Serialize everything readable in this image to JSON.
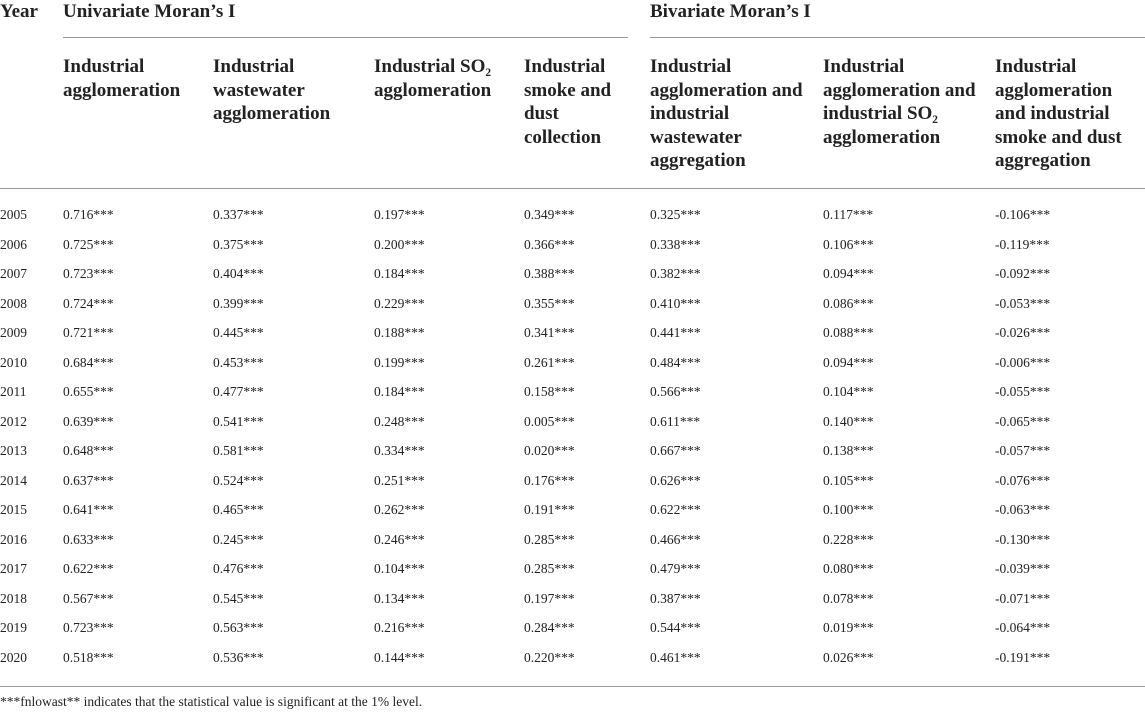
{
  "table": {
    "group_headers": [
      "Year",
      "Univariate Moran’s I",
      "Bivariate Moran’s I"
    ],
    "column_headers": [
      "Industrial agglomeration",
      "Industrial wastewater agglomeration",
      "Industrial SO₂ agglomeration",
      "Industrial smoke and dust collection",
      "Industrial agglomeration and industrial wastewater aggregation",
      "Industrial agglomeration and industrial SO₂ agglomeration",
      "Industrial agglomeration and industrial smoke and dust aggregation"
    ],
    "rows": [
      [
        "2005",
        "0.716***",
        "0.337***",
        "0.197***",
        "0.349***",
        "0.325***",
        "0.117***",
        "-0.106***"
      ],
      [
        "2006",
        "0.725***",
        "0.375***",
        "0.200***",
        "0.366***",
        "0.338***",
        "0.106***",
        "-0.119***"
      ],
      [
        "2007",
        "0.723***",
        "0.404***",
        "0.184***",
        "0.388***",
        "0.382***",
        "0.094***",
        "-0.092***"
      ],
      [
        "2008",
        "0.724***",
        "0.399***",
        "0.229***",
        "0.355***",
        "0.410***",
        "0.086***",
        "-0.053***"
      ],
      [
        "2009",
        "0.721***",
        "0.445***",
        "0.188***",
        "0.341***",
        "0.441***",
        "0.088***",
        "-0.026***"
      ],
      [
        "2010",
        "0.684***",
        "0.453***",
        "0.199***",
        "0.261***",
        "0.484***",
        "0.094***",
        "-0.006***"
      ],
      [
        "2011",
        "0.655***",
        "0.477***",
        "0.184***",
        "0.158***",
        "0.566***",
        "0.104***",
        "-0.055***"
      ],
      [
        "2012",
        "0.639***",
        "0.541***",
        "0.248***",
        "0.005***",
        "0.611***",
        "0.140***",
        "-0.065***"
      ],
      [
        "2013",
        "0.648***",
        "0.581***",
        "0.334***",
        "0.020***",
        "0.667***",
        "0.138***",
        "-0.057***"
      ],
      [
        "2014",
        "0.637***",
        "0.524***",
        "0.251***",
        "0.176***",
        "0.626***",
        "0.105***",
        "-0.076***"
      ],
      [
        "2015",
        "0.641***",
        "0.465***",
        "0.262***",
        "0.191***",
        "0.622***",
        "0.100***",
        "-0.063***"
      ],
      [
        "2016",
        "0.633***",
        "0.245***",
        "0.246***",
        "0.285***",
        "0.466***",
        "0.228***",
        "-0.130***"
      ],
      [
        "2017",
        "0.622***",
        "0.476***",
        "0.104***",
        "0.285***",
        "0.479***",
        "0.080***",
        "-0.039***"
      ],
      [
        "2018",
        "0.567***",
        "0.545***",
        "0.134***",
        "0.197***",
        "0.387***",
        "0.078***",
        "-0.071***"
      ],
      [
        "2019",
        "0.723***",
        "0.563***",
        "0.216***",
        "0.284***",
        "0.544***",
        "0.019***",
        "-0.064***"
      ],
      [
        "2020",
        "0.518***",
        "0.536***",
        "0.144***",
        "0.220***",
        "0.461***",
        "0.026***",
        "-0.191***"
      ]
    ],
    "footnote": "***fnlowast** indicates that the statistical value is significant at the 1% level."
  }
}
